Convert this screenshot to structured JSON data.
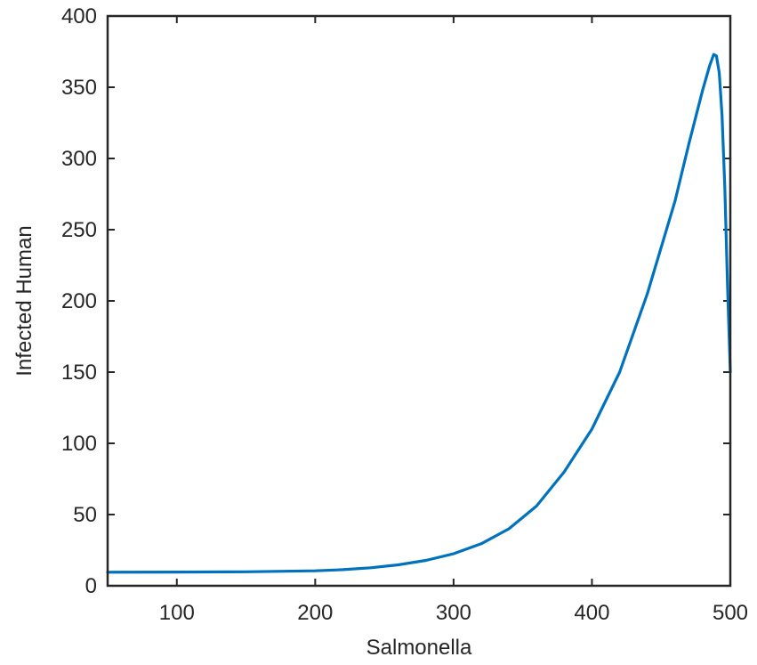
{
  "chart_data": {
    "type": "line",
    "title": "",
    "xlabel": "Salmonella",
    "ylabel": "Infected Human",
    "xlim": [
      50,
      500
    ],
    "ylim": [
      0,
      400
    ],
    "xticks": [
      100,
      200,
      300,
      400,
      500
    ],
    "yticks": [
      0,
      50,
      100,
      150,
      200,
      250,
      300,
      350,
      400
    ],
    "grid": false,
    "legend": "none",
    "series": [
      {
        "color": "#0072BD",
        "x": [
          50,
          100,
          150,
          200,
          220,
          240,
          260,
          280,
          300,
          320,
          340,
          360,
          380,
          400,
          420,
          440,
          460,
          470,
          480,
          485,
          488,
          490,
          492,
          494,
          496,
          498,
          500
        ],
        "y": [
          9.5,
          9.6,
          9.8,
          10.5,
          11.3,
          12.6,
          14.7,
          17.8,
          22.5,
          29.5,
          40,
          56,
          80,
          110,
          150,
          205,
          270,
          310,
          348,
          365,
          373,
          372,
          360,
          330,
          280,
          210,
          150
        ]
      }
    ]
  }
}
